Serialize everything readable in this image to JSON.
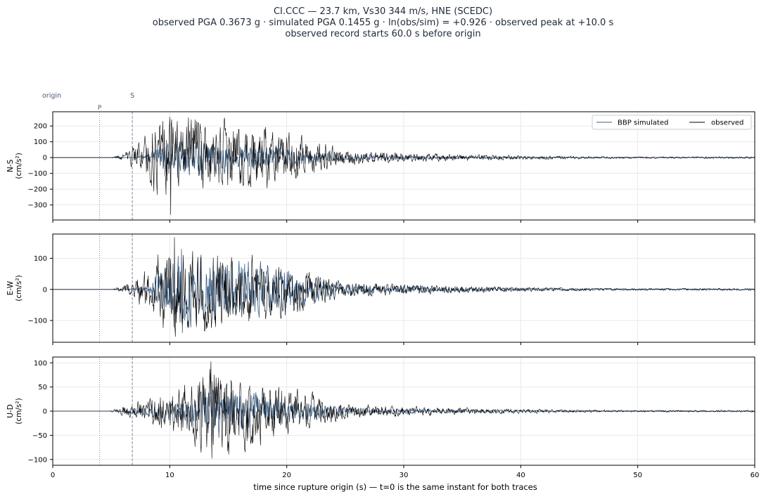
{
  "header": {
    "title_line1": "CI.CCC  —  23.7 km, Vs30 344 m/s, HNE (SCEDC)",
    "title_line2": "observed PGA 0.3673 g   ·   simulated PGA 0.1455 g   ·   ln(obs/sim) = +0.926   ·   observed peak at +10.0 s",
    "title_line3": "observed record starts 60.0 s before origin"
  },
  "markers": {
    "origin_label": "origin",
    "p_label": "P",
    "s_label": "S",
    "origin_t": 0,
    "p_t": 4.0,
    "s_t": 6.8
  },
  "colors": {
    "simulated": "#3b5f86",
    "observed": "#000000",
    "marker": "#7a8aa8",
    "grid": "#e3e3e3"
  },
  "chart_data": {
    "type": "line",
    "xlabel": "time since rupture origin (s)   —   t=0 is the same instant for both traces",
    "xlim": [
      0,
      60
    ],
    "xticks": [
      0,
      10,
      20,
      30,
      40,
      50,
      60
    ],
    "legend": {
      "position": "top-right",
      "entries": [
        "BBP simulated",
        "observed"
      ]
    },
    "panels": [
      {
        "ylabel": "N-S",
        "yunit": "(cm/s²)",
        "ylim": [
          -395,
          290
        ],
        "yticks": [
          200,
          100,
          0,
          -100,
          -200,
          -300
        ],
        "obs_peak": 257,
        "obs_trough": -362,
        "sim_peak": 132,
        "sim_trough": -128,
        "obs_onset": 5.0,
        "sim_onset": 6.5,
        "obs_peak_t": 10.0
      },
      {
        "ylabel": "E-W",
        "yunit": "(cm/s²)",
        "ylim": [
          -170,
          178
        ],
        "yticks": [
          100,
          0,
          -100
        ],
        "obs_peak": 168,
        "obs_trough": -152,
        "sim_peak": 130,
        "sim_trough": -140,
        "obs_onset": 5.0,
        "sim_onset": 6.5,
        "obs_peak_t": 10.4
      },
      {
        "ylabel": "U-D",
        "yunit": "(cm/s²)",
        "ylim": [
          -112,
          112
        ],
        "yticks": [
          100,
          50,
          0,
          -50,
          -100
        ],
        "obs_peak": 103,
        "obs_trough": -98,
        "sim_peak": 58,
        "sim_trough": -55,
        "obs_onset": 4.8,
        "sim_onset": 5.5,
        "obs_peak_t": 13.5
      }
    ]
  }
}
